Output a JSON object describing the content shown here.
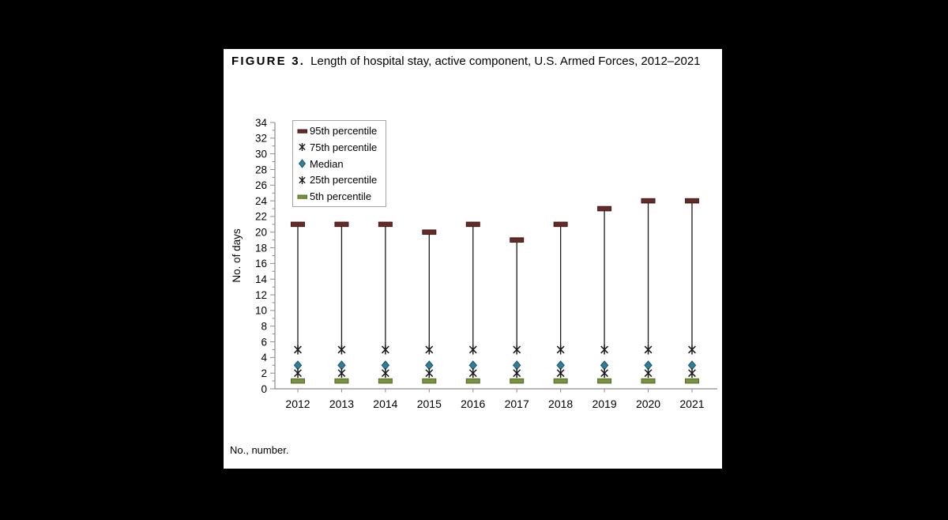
{
  "figure": {
    "label": "FIGURE 3.",
    "title": "Length of hospital stay, active component, U.S. Armed Forces, 2012–2021",
    "footnote": "No., number."
  },
  "chart_data": {
    "type": "scatter",
    "title": "Length of hospital stay, active component, U.S. Armed Forces, 2012–2021",
    "xlabel": "",
    "ylabel": "No. of days",
    "categories": [
      "2012",
      "2013",
      "2014",
      "2015",
      "2016",
      "2017",
      "2018",
      "2019",
      "2020",
      "2021"
    ],
    "series": [
      {
        "name": "95th percentile",
        "marker": "dash",
        "color": "#642B28",
        "border": "#401B17",
        "values": [
          21,
          21,
          21,
          20,
          21,
          19,
          21,
          23,
          24,
          24
        ]
      },
      {
        "name": "75th percentile",
        "marker": "asterisk",
        "color": "#1a1a1a",
        "border": "#1a1a1a",
        "values": [
          5,
          5,
          5,
          5,
          5,
          5,
          5,
          5,
          5,
          5
        ]
      },
      {
        "name": "Median",
        "marker": "diamond",
        "color": "#2E7D99",
        "border": "#1D566B",
        "values": [
          3,
          3,
          3,
          3,
          3,
          3,
          3,
          3,
          3,
          3
        ]
      },
      {
        "name": "25th percentile",
        "marker": "asterisk",
        "color": "#1a1a1a",
        "border": "#1a1a1a",
        "values": [
          2,
          2,
          2,
          2,
          2,
          2,
          2,
          2,
          2,
          2
        ]
      },
      {
        "name": "5th percentile",
        "marker": "dash",
        "color": "#77933C",
        "border": "#55692B",
        "values": [
          1,
          1,
          1,
          1,
          1,
          1,
          1,
          1,
          1,
          1
        ]
      }
    ],
    "connector": {
      "from": "95th percentile",
      "to": "75th percentile",
      "color": "#1a1a1a"
    },
    "ylim": [
      0,
      34
    ],
    "yticks": [
      0,
      2,
      4,
      6,
      8,
      10,
      12,
      14,
      16,
      18,
      20,
      22,
      24,
      26,
      28,
      30,
      32,
      34
    ],
    "minor_tick_step": 1,
    "grid": false,
    "legend_position": "top-left",
    "axis_color": "#8c8c8c"
  }
}
